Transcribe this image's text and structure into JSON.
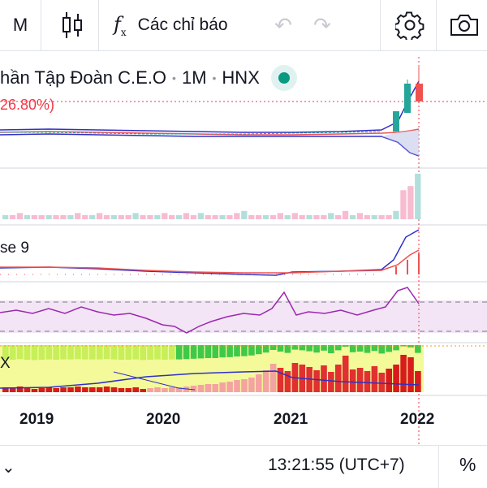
{
  "toolbar": {
    "interval": "M",
    "indicators_label": "Các chỉ báo",
    "fx_main": "f",
    "fx_sub": "x",
    "undo_glyph": "↶",
    "redo_glyph": "↷"
  },
  "legend": {
    "symbol_name": "hần Tập Đoàn C.E.O",
    "interval": "1M",
    "exchange": "HNX",
    "change": "26.80%)",
    "status_color": "#089981"
  },
  "panes": {
    "macd_label": "se 9",
    "adx_label": "X"
  },
  "time_axis": {
    "labels": [
      "2019",
      "2020",
      "2021",
      "2022"
    ]
  },
  "bottom": {
    "time": "13:21:55 (UTC+7)",
    "percent": "%"
  },
  "colors": {
    "up": "#26a69a",
    "down": "#ef5350",
    "ma_blue": "#3030c8",
    "rsi_purple": "#9c27b0"
  },
  "chart_data": {
    "type": "bar",
    "title": "",
    "series": [
      {
        "values": [
          1,
          1,
          1.5,
          1,
          1,
          1,
          1,
          1,
          1,
          1,
          1.5,
          1,
          1,
          1.5,
          1,
          1,
          1,
          1,
          1.5,
          1,
          1,
          1,
          1.5,
          1,
          1,
          1.5,
          1,
          1.5,
          1,
          1,
          1,
          1,
          1.5,
          2,
          1,
          1,
          1,
          1,
          1.5,
          1,
          1.5,
          1,
          1,
          1,
          1,
          1.5,
          1,
          2,
          1,
          1.5,
          1,
          1,
          1,
          1,
          2,
          7,
          8,
          11
        ]
      },
      {
        "values": [
          0.6,
          0.5,
          0.7,
          0.5,
          0.4,
          0.5,
          0.6,
          0.5,
          0.6,
          0.6,
          0.7,
          0.6,
          0.6,
          0.6,
          0.7,
          0.6,
          0.5,
          0.5,
          0.6,
          0.4,
          0.5,
          0.6,
          0.5,
          0.6,
          0.6,
          0.7,
          0.8,
          0.9,
          1,
          1,
          1.2,
          1.3,
          1.5,
          1.6,
          1.8,
          2.2,
          2.7,
          3.5,
          3,
          2.6,
          3.6,
          3.4,
          3.1,
          2.7,
          3.3,
          2.5,
          3.4,
          4.5,
          2.8,
          3.0,
          2.6,
          3.2,
          2.4,
          2.9,
          3.4,
          4.6,
          4.3,
          2.6
        ]
      }
    ]
  }
}
